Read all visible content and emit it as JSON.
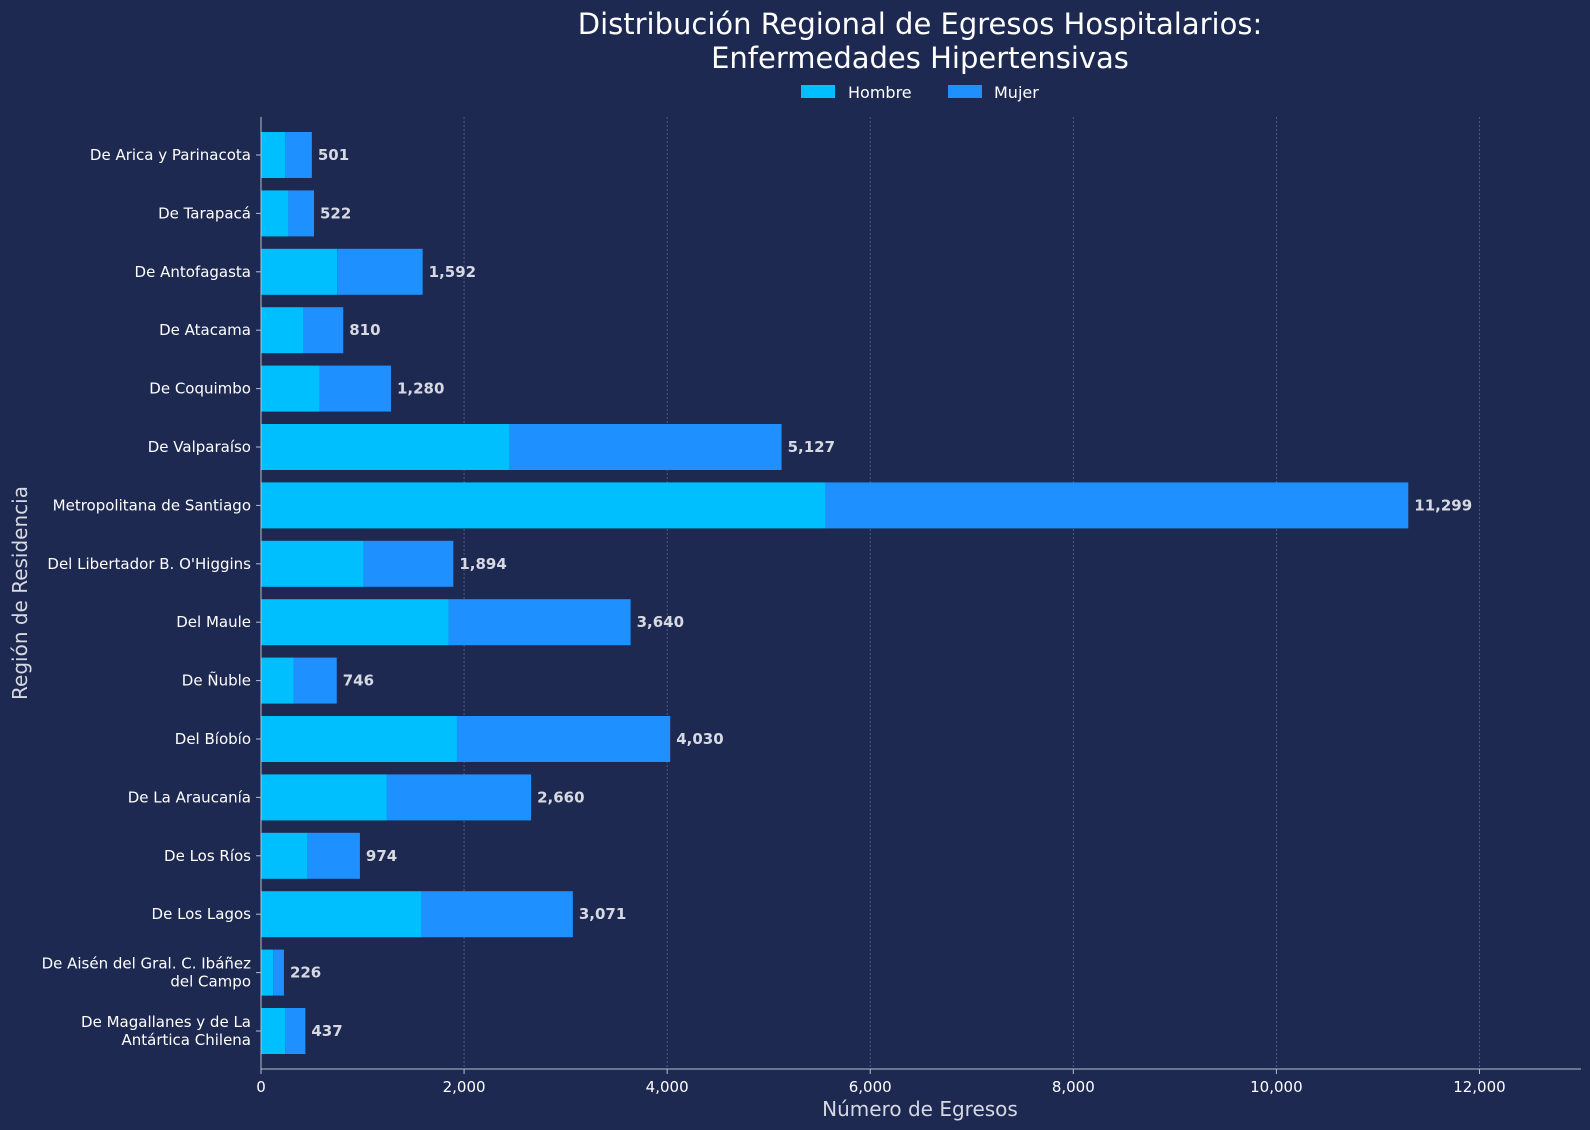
{
  "chart_data": {
    "type": "bar",
    "orientation": "horizontal",
    "stacked": true,
    "title_lines": [
      "Distribución Regional de Egresos Hospitalarios:",
      "Enfermedades Hipertensivas"
    ],
    "xlabel": "Número de Egresos",
    "ylabel": "Región de Residencia",
    "xlim": [
      0,
      13000
    ],
    "x_ticks": [
      0,
      2000,
      4000,
      6000,
      8000,
      10000,
      12000
    ],
    "x_tick_labels": [
      "0",
      "2,000",
      "4,000",
      "6,000",
      "8,000",
      "10,000",
      "12,000"
    ],
    "grid": "vertical, dashed",
    "legend_position": "top-center",
    "categories": [
      [
        "De Arica y Parinacota"
      ],
      [
        "De Tarapacá"
      ],
      [
        "De Antofagasta"
      ],
      [
        "De Atacama"
      ],
      [
        "De Coquimbo"
      ],
      [
        "De Valparaíso"
      ],
      [
        "Metropolitana de Santiago"
      ],
      [
        "Del Libertador B. O'Higgins"
      ],
      [
        "Del Maule"
      ],
      [
        "De Ñuble"
      ],
      [
        "Del Bíobío"
      ],
      [
        "De La Araucanía"
      ],
      [
        "De Los Ríos"
      ],
      [
        "De Los Lagos"
      ],
      [
        "De Aisén del Gral. C. Ibáñez",
        "del Campo"
      ],
      [
        "De Magallanes y de La",
        "Antártica Chilena"
      ]
    ],
    "series": [
      {
        "name": "Hombre",
        "color": "#00bfff",
        "values": [
          240,
          270,
          750,
          420,
          580,
          2450,
          5560,
          1010,
          1850,
          320,
          1930,
          1240,
          460,
          1580,
          120,
          240
        ]
      },
      {
        "name": "Mujer",
        "color": "#1e90ff",
        "values": [
          261,
          252,
          842,
          390,
          700,
          2677,
          5739,
          884,
          1790,
          426,
          2100,
          1420,
          514,
          1491,
          106,
          197
        ]
      }
    ],
    "totals": [
      501,
      522,
      1592,
      810,
      1280,
      5127,
      11299,
      1894,
      3640,
      746,
      4030,
      2660,
      974,
      3071,
      226,
      437
    ],
    "total_labels": [
      "501",
      "522",
      "1,592",
      "810",
      "1,280",
      "5,127",
      "11,299",
      "1,894",
      "3,640",
      "746",
      "4,030",
      "2,660",
      "974",
      "3,071",
      "226",
      "437"
    ]
  }
}
